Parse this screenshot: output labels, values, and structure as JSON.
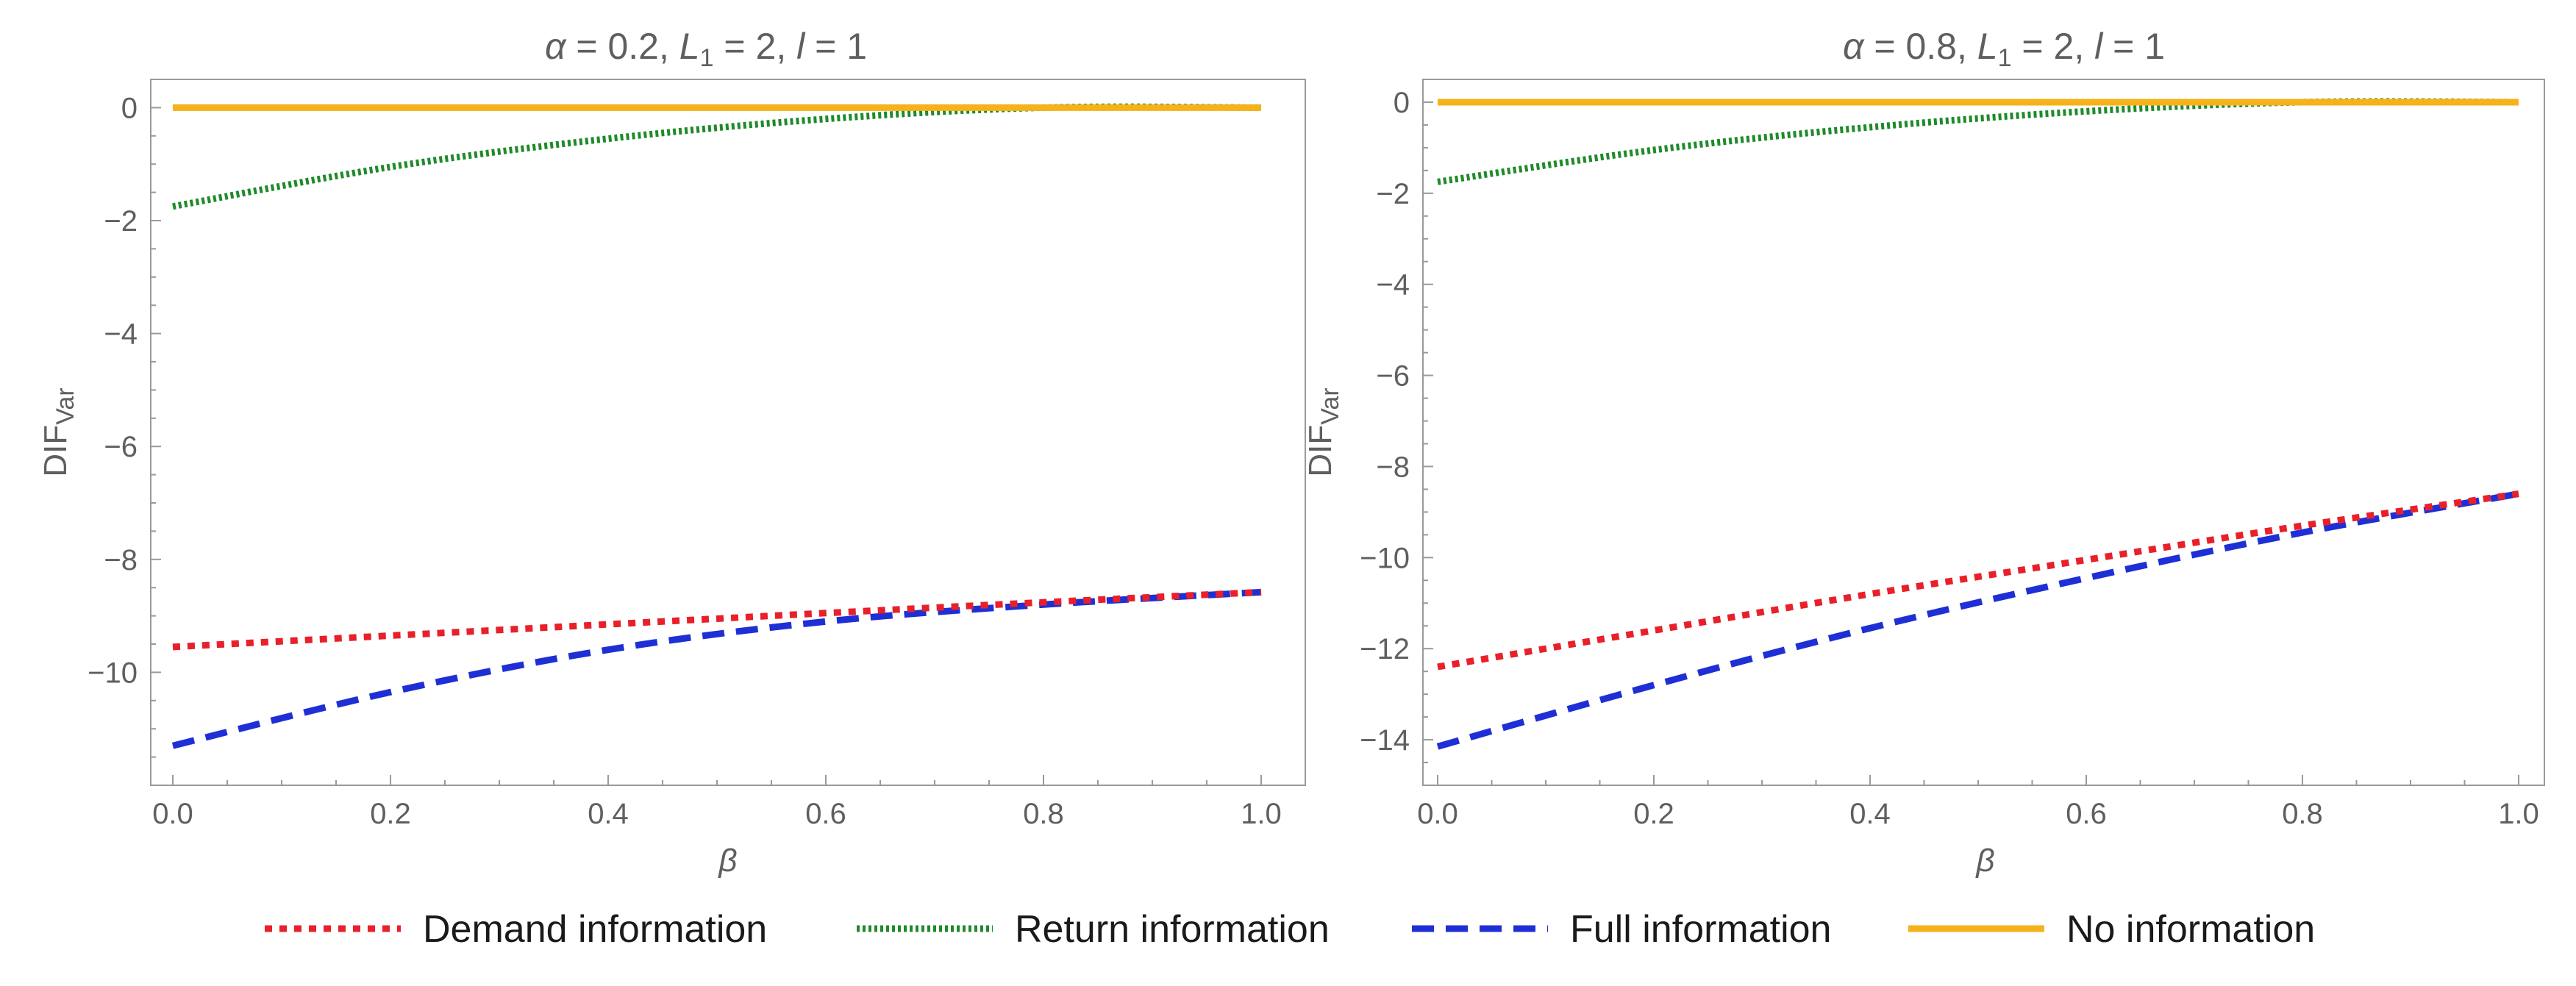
{
  "chart_data": [
    {
      "type": "line",
      "title": {
        "alpha": "0.2",
        "L1": "2",
        "l": "1"
      },
      "xlabel": "β",
      "ylabel": "DIF",
      "ylabel_sub": "Var",
      "xlim": [
        0,
        1
      ],
      "ylim": [
        -12,
        0.5
      ],
      "xticks": [
        "0.0",
        "0.2",
        "0.4",
        "0.6",
        "0.8",
        "1.0"
      ],
      "yticks": [
        "0",
        "−2",
        "−4",
        "−6",
        "−8",
        "−10"
      ],
      "series": [
        {
          "name": "Demand information",
          "x": [
            0,
            0.2,
            0.4,
            0.6,
            0.8,
            1.0
          ],
          "values": [
            -9.55,
            -9.35,
            -9.15,
            -8.95,
            -8.76,
            -8.58
          ]
        },
        {
          "name": "Return information",
          "x": [
            0,
            0.2,
            0.4,
            0.6,
            0.8,
            1.0
          ],
          "values": [
            -1.75,
            -1.05,
            -0.55,
            -0.2,
            0,
            0
          ]
        },
        {
          "name": "Full information",
          "x": [
            0,
            0.2,
            0.4,
            0.6,
            0.8,
            1.0
          ],
          "values": [
            -11.3,
            -10.35,
            -9.6,
            -9.1,
            -8.8,
            -8.58
          ]
        },
        {
          "name": "No information",
          "x": [
            0,
            1.0
          ],
          "values": [
            0,
            0
          ]
        }
      ]
    },
    {
      "type": "line",
      "title": {
        "alpha": "0.8",
        "L1": "2",
        "l": "1"
      },
      "xlabel": "β",
      "ylabel": "DIF",
      "ylabel_sub": "Var",
      "xlim": [
        0,
        1
      ],
      "ylim": [
        -15,
        0.5
      ],
      "xticks": [
        "0.0",
        "0.2",
        "0.4",
        "0.6",
        "0.8",
        "1.0"
      ],
      "yticks": [
        "0",
        "−2",
        "−4",
        "−6",
        "−8",
        "−10",
        "−12",
        "−14"
      ],
      "series": [
        {
          "name": "Demand information",
          "x": [
            0,
            0.2,
            0.4,
            0.6,
            0.8,
            1.0
          ],
          "values": [
            -12.4,
            -11.6,
            -10.8,
            -10.05,
            -9.3,
            -8.6
          ]
        },
        {
          "name": "Return information",
          "x": [
            0,
            0.2,
            0.4,
            0.6,
            0.8,
            1.0
          ],
          "values": [
            -1.75,
            -1.05,
            -0.55,
            -0.2,
            0,
            0
          ]
        },
        {
          "name": "Full information",
          "x": [
            0,
            0.2,
            0.4,
            0.6,
            0.8,
            1.0
          ],
          "values": [
            -14.15,
            -12.8,
            -11.55,
            -10.45,
            -9.45,
            -8.6
          ]
        },
        {
          "name": "No information",
          "x": [
            0,
            1.0
          ],
          "values": [
            0,
            0
          ]
        }
      ]
    }
  ],
  "legend": [
    {
      "name": "Demand information",
      "color": "#e8202a",
      "style": "dotted"
    },
    {
      "name": "Return information",
      "color": "#1f8a2a",
      "style": "dense-dotted"
    },
    {
      "name": "Full information",
      "color": "#1f2fd6",
      "style": "dashed"
    },
    {
      "name": "No information",
      "color": "#f5b21a",
      "style": "solid"
    }
  ]
}
